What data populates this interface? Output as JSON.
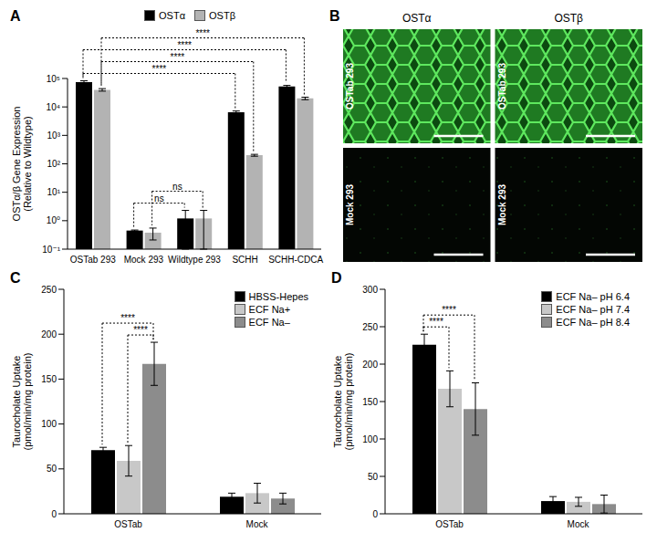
{
  "chart_data": [
    {
      "type": "bar",
      "panel": "A",
      "log": "y",
      "legend": "top",
      "y_label": "OSTα/β Gene Expression\n(Relative to Wildtype)",
      "categories": [
        "OSTab 293",
        "Mock 293",
        "Wildtype 293",
        "SCHH",
        "SCHH-CDCA"
      ],
      "series": [
        {
          "name": "OSTα",
          "color": "#000000",
          "values": [
            75000,
            0.45,
            1.2,
            6500,
            52000
          ],
          "errors": [
            8000,
            0.02,
            1.1,
            700,
            5000
          ]
        },
        {
          "name": "OSTβ",
          "color": "#b3b3b3",
          "values": [
            40000,
            0.38,
            1.2,
            200,
            20000
          ],
          "errors": [
            4000,
            0.17,
            1.1,
            15,
            2000
          ]
        }
      ],
      "ylim": [
        0.1,
        100000
      ],
      "yticks": [
        {
          "value": 0.1,
          "label": "10⁻¹"
        },
        {
          "value": 1,
          "label": "10⁰"
        },
        {
          "value": 10,
          "label": "10¹"
        },
        {
          "value": 100,
          "label": "10²"
        },
        {
          "value": 1000,
          "label": "10³"
        },
        {
          "value": 10000,
          "label": "10⁴"
        },
        {
          "value": 100000,
          "label": "10⁵"
        }
      ],
      "annotations": [
        {
          "label": "****",
          "from": {
            "category": "OSTab 293",
            "series": "OSTα"
          },
          "to": {
            "category": "SCHH-CDCA",
            "series": "OSTα"
          }
        },
        {
          "label": "****",
          "from": {
            "category": "OSTab 293",
            "series": "OSTα"
          },
          "to": {
            "category": "SCHH",
            "series": "OSTα"
          }
        },
        {
          "label": "****",
          "from": {
            "category": "OSTab 293",
            "series": "OSTβ"
          },
          "to": {
            "category": "SCHH-CDCA",
            "series": "OSTβ"
          }
        },
        {
          "label": "****",
          "from": {
            "category": "OSTab 293",
            "series": "OSTβ"
          },
          "to": {
            "category": "SCHH",
            "series": "OSTβ"
          }
        },
        {
          "label": "ns",
          "from": {
            "category": "Mock 293",
            "series": "OSTα"
          },
          "to": {
            "category": "Wildtype 293",
            "series": "OSTα"
          }
        },
        {
          "label": "ns",
          "from": {
            "category": "Mock 293",
            "series": "OSTβ"
          },
          "to": {
            "category": "Wildtype 293",
            "series": "OSTβ"
          }
        }
      ]
    },
    {
      "type": "image",
      "panel": "B",
      "columns": [
        "OSTα",
        "OSTβ"
      ],
      "rows": [
        "OSTab 293",
        "Mock 293"
      ]
    },
    {
      "type": "bar",
      "panel": "C",
      "legend": "upper right",
      "y_label": "Taurocholate Uptake\n(pmol/min/mg protein)",
      "categories": [
        "OSTab",
        "Mock"
      ],
      "series": [
        {
          "name": "HBSS-Hepes",
          "color": "#000000",
          "values": [
            71,
            19
          ],
          "errors": [
            3,
            4
          ]
        },
        {
          "name": "ECF Na+",
          "color": "#c8c8c8",
          "values": [
            59,
            23
          ],
          "errors": [
            17,
            11
          ]
        },
        {
          "name": "ECF Na–",
          "color": "#8c8c8c",
          "values": [
            167,
            17
          ],
          "errors": [
            24,
            6
          ]
        }
      ],
      "ylim": [
        0,
        250
      ],
      "yticks": [
        0,
        50,
        100,
        150,
        200,
        250
      ],
      "annotations": [
        {
          "label": "****",
          "from": {
            "category": "OSTab",
            "series": "HBSS-Hepes"
          },
          "to": {
            "category": "OSTab",
            "series": "ECF Na–"
          }
        },
        {
          "label": "****",
          "from": {
            "category": "OSTab",
            "series": "ECF Na+"
          },
          "to": {
            "category": "OSTab",
            "series": "ECF Na–"
          }
        }
      ]
    },
    {
      "type": "bar",
      "panel": "D",
      "legend": "upper right",
      "y_label": "Taurocholate Uptake\n(pmol/min/mg protein)",
      "categories": [
        "OSTab",
        "Mock"
      ],
      "series": [
        {
          "name": "ECF Na– pH 6.4",
          "color": "#000000",
          "values": [
            226,
            17
          ],
          "errors": [
            14,
            6
          ]
        },
        {
          "name": "ECF Na– pH 7.4",
          "color": "#c8c8c8",
          "values": [
            167,
            16
          ],
          "errors": [
            24,
            6
          ]
        },
        {
          "name": "ECF Na– pH 8.4",
          "color": "#8c8c8c",
          "values": [
            140,
            13
          ],
          "errors": [
            35,
            12
          ]
        }
      ],
      "ylim": [
        0,
        300
      ],
      "yticks": [
        0,
        50,
        100,
        150,
        200,
        250,
        300
      ],
      "annotations": [
        {
          "label": "****",
          "from": {
            "category": "OSTab",
            "series": "ECF Na– pH 6.4"
          },
          "to": {
            "category": "OSTab",
            "series": "ECF Na– pH 7.4"
          }
        },
        {
          "label": "****",
          "from": {
            "category": "OSTab",
            "series": "ECF Na– pH 6.4"
          },
          "to": {
            "category": "OSTab",
            "series": "ECF Na– pH 8.4"
          }
        }
      ]
    }
  ]
}
